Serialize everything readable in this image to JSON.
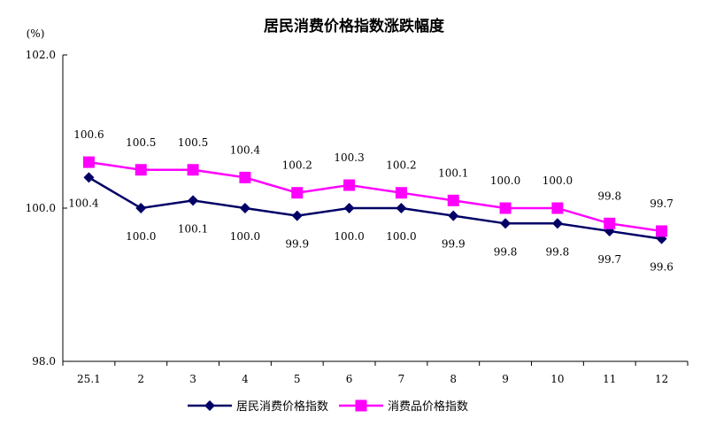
{
  "chart_data": {
    "type": "line",
    "title": "居民消费价格指数涨跌幅度",
    "unit_label": "(%)",
    "ylim": [
      98.0,
      102.0
    ],
    "yticks": [
      "98.0",
      "100.0",
      "102.0"
    ],
    "grid": false,
    "legend_position": "bottom",
    "categories": [
      "25.1",
      "2",
      "3",
      "4",
      "5",
      "6",
      "7",
      "8",
      "9",
      "10",
      "11",
      "12"
    ],
    "series": [
      {
        "name": "居民消费价格指数",
        "color": "#000066",
        "marker": "diamond",
        "values": [
          100.4,
          100.0,
          100.1,
          100.0,
          99.9,
          100.0,
          100.0,
          99.9,
          99.8,
          99.8,
          99.7,
          99.6
        ]
      },
      {
        "name": "消费品价格指数",
        "color": "#FF00FF",
        "marker": "square",
        "values": [
          100.6,
          100.5,
          100.5,
          100.4,
          100.2,
          100.3,
          100.2,
          100.1,
          100.0,
          100.0,
          99.8,
          99.7
        ]
      }
    ]
  }
}
